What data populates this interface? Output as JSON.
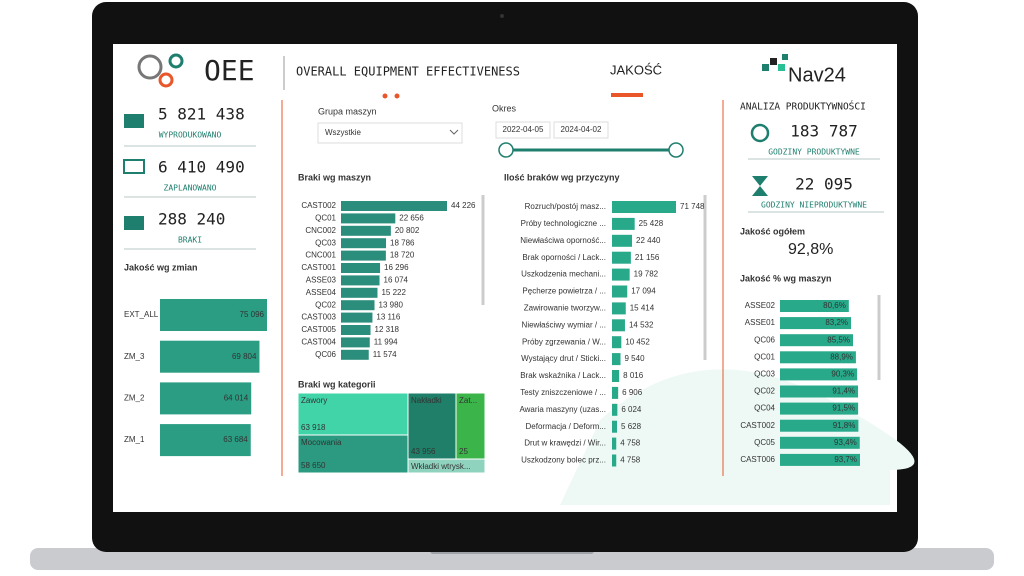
{
  "header": {
    "title": "OEE",
    "subtitle": "OVERALL EQUIPMENT EFFECTIVENESS",
    "page": "JAKOŚĆ",
    "logo": "Nav24"
  },
  "kpis": [
    {
      "value": "5 821 438",
      "label": "WYPRODUKOWANO"
    },
    {
      "value": "6 410 490",
      "label": "ZAPLANOWANO"
    },
    {
      "value": "288 240",
      "label": "BRAKI"
    }
  ],
  "shift_chart": {
    "title": "Jakość wg zmian",
    "color": "#2a9d83",
    "categories": [
      "EXT_ALL",
      "ZM_3",
      "ZM_2",
      "ZM_1"
    ],
    "values": [
      75096,
      69804,
      64014,
      63684
    ],
    "value_labels": [
      "75 096",
      "69 804",
      "64 014",
      "63 684"
    ]
  },
  "filters": {
    "machine_group": {
      "label": "Grupa maszyn",
      "selected": "Wszystkie"
    },
    "period": {
      "label": "Okres",
      "start": "2022-04-05",
      "end": "2024-04-02"
    }
  },
  "machine_chart": {
    "title": "Braki wg maszyn",
    "color": "#2b8d7b",
    "categories": [
      "CAST002",
      "QC01",
      "CNC002",
      "QC03",
      "CNC001",
      "CAST001",
      "ASSE03",
      "ASSE04",
      "QC02",
      "CAST003",
      "CAST005",
      "CAST004",
      "QC06"
    ],
    "values": [
      44226,
      22656,
      20802,
      18786,
      18720,
      16296,
      16074,
      15222,
      13980,
      13116,
      12318,
      11994,
      11574
    ],
    "value_labels": [
      "44 226",
      "22 656",
      "20 802",
      "18 786",
      "18 720",
      "16 296",
      "16 074",
      "15 222",
      "13 980",
      "13 116",
      "12 318",
      "11 994",
      "11 574"
    ]
  },
  "treemap": {
    "title": "Braki wg kategorii",
    "tiles": [
      {
        "label": "Zawory",
        "value": "63 918"
      },
      {
        "label": "Mocowania",
        "value": "58 650"
      },
      {
        "label": "Nakładki",
        "value": "43 956"
      },
      {
        "label": "Zat...",
        "value": "25"
      },
      {
        "label": "Wkładki wtrysk..."
      }
    ]
  },
  "reason_chart": {
    "title": "Ilość braków wg przyczyny",
    "color": "#27a98a",
    "categories": [
      "Rozruch/postój masz...",
      "Próby technologiczne ...",
      "Niewłaściwa oporność...",
      "Brak oporności / Lack...",
      "Uszkodzenia mechani...",
      "Pęcherze powietrza / ...",
      "Zawirowanie tworzyw...",
      "Niewłaściwy wymiar / ...",
      "Próby zgrzewania / W...",
      "Wystający drut / Sticki...",
      "Brak wskaźnika / Lack...",
      "Testy zniszczeniowe / ...",
      "Awaria maszyny (uzas...",
      "Deformacja / Deform...",
      "Drut w krawędzi / Wir...",
      "Uszkodzony bolec prz..."
    ],
    "values": [
      71748,
      25428,
      22440,
      21156,
      19782,
      17094,
      15414,
      14532,
      10452,
      9540,
      8016,
      6906,
      6024,
      5628,
      4758,
      4758
    ],
    "value_labels": [
      "71 748",
      "25 428",
      "22 440",
      "21 156",
      "19 782",
      "17 094",
      "15 414",
      "14 532",
      "10 452",
      "9 540",
      "8 016",
      "6 906",
      "6 024",
      "5 628",
      "4 758",
      "4 758"
    ]
  },
  "productivity": {
    "title": "ANALIZA PRODUKTYWNOŚCI",
    "items": [
      {
        "value": "183 787",
        "label": "GODZINY PRODUKTYWNE"
      },
      {
        "value": "22 095",
        "label": "GODZINY NIEPRODUKTYWNE"
      }
    ],
    "quality_label": "Jakość ogółem",
    "quality_value": "92,8%"
  },
  "quality_chart": {
    "title": "Jakość % wg maszyn",
    "color": "#27a98a",
    "categories": [
      "ASSE02",
      "ASSE01",
      "QC06",
      "QC01",
      "QC03",
      "QC02",
      "QC04",
      "CAST002",
      "QC05",
      "CAST006"
    ],
    "values": [
      80.6,
      83.2,
      85.5,
      88.9,
      90.3,
      91.4,
      91.5,
      91.8,
      93.4,
      93.7
    ],
    "value_labels": [
      "80,6%",
      "83,2%",
      "85,5%",
      "88,9%",
      "90,3%",
      "91,4%",
      "91,5%",
      "91,8%",
      "93,4%",
      "93,7%"
    ]
  }
}
